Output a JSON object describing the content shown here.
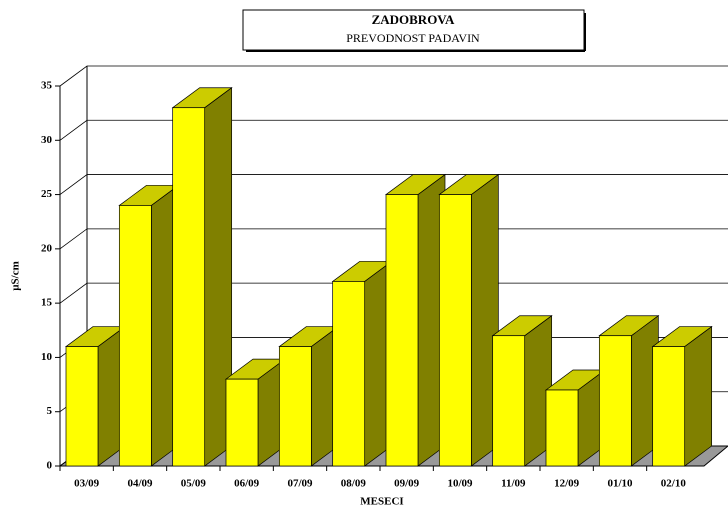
{
  "chart_data": {
    "type": "bar3d",
    "title": "ZADOBROVA",
    "subtitle": "PREVODNOST PADAVIN",
    "x_label": "MESECI",
    "y_label": "µS/cm",
    "categories": [
      "03/09",
      "04/09",
      "05/09",
      "06/09",
      "07/09",
      "08/09",
      "09/09",
      "10/09",
      "11/09",
      "12/09",
      "01/10",
      "02/10"
    ],
    "values": [
      11,
      24,
      33,
      8,
      11,
      17,
      25,
      25,
      12,
      7,
      12,
      11
    ],
    "color": "#ffff00",
    "top_color": "#cccc00",
    "side_color": "#808000",
    "ylim": [
      0,
      35
    ],
    "yticks": [
      0,
      5,
      10,
      15,
      20,
      25,
      30,
      35
    ],
    "grid": true
  }
}
